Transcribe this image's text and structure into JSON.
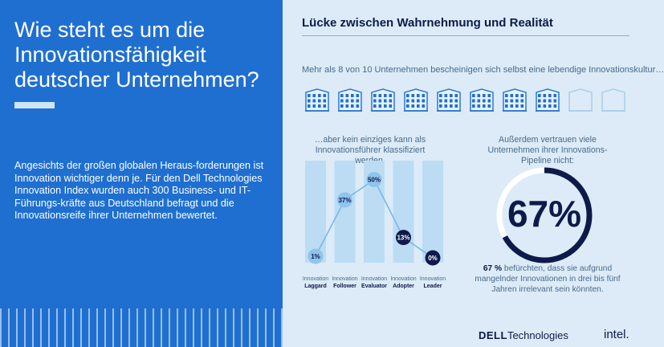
{
  "left": {
    "title": "Wie steht es um die Innovationsfähigkeit deutscher Unternehmen?",
    "body": "Angesichts der großen globalen Heraus-forderungen ist Innovation wichtiger denn je. Für den Dell Technologies Innovation Index wurden auch 300 Business- und IT-Führungs-kräfte aus Deutschland befragt und die Innovationsreife ihrer Unternehmen bewertet."
  },
  "right": {
    "title": "Lücke zwischen Wahrnehmung und Realität",
    "intro": "Mehr als 8 von 10 Unternehmen bescheinigen sich selbst eine lebendige Innovationskultur…",
    "buildings": {
      "filled": 8,
      "total": 10
    },
    "bar_caption": "…aber kein einziges kann als Innovationsführer klassifiziert werden.",
    "pipeline_caption": "Außerdem vertrauen viele Unternehmen ihrer Innovations-Pipeline nicht:",
    "pipeline_value": "67%",
    "pipeline_fraction": 0.67,
    "pipeline_note_bold": "67 %",
    "pipeline_note_rest": " befürchten, dass sie aufgrund mangelnder Innovationen in drei bis fünf Jahren irrelevant sein könnten."
  },
  "chart_data": {
    "type": "line",
    "categories": [
      {
        "top": "Innovation",
        "bottom": "Laggard"
      },
      {
        "top": "Innovation",
        "bottom": "Follower"
      },
      {
        "top": "Innovation",
        "bottom": "Evaluator"
      },
      {
        "top": "Innovation",
        "bottom": "Adopter"
      },
      {
        "top": "Innovation",
        "bottom": "Leader"
      }
    ],
    "values": [
      1,
      37,
      50,
      13,
      0
    ],
    "labels": [
      "1%",
      "37%",
      "50%",
      "13%",
      "0%"
    ],
    "ylim": [
      0,
      60
    ]
  },
  "colors": {
    "brand_blue": "#1f6fd1",
    "navy": "#0d1a4a",
    "light_bg": "#dcebf7",
    "column": "#bcdcf4",
    "dot_light": "#8fc4ec",
    "line": "#7cb7e6"
  },
  "footer": {
    "dell_bold": "DELL",
    "dell_rest": "Technologies",
    "intel": "intel."
  }
}
